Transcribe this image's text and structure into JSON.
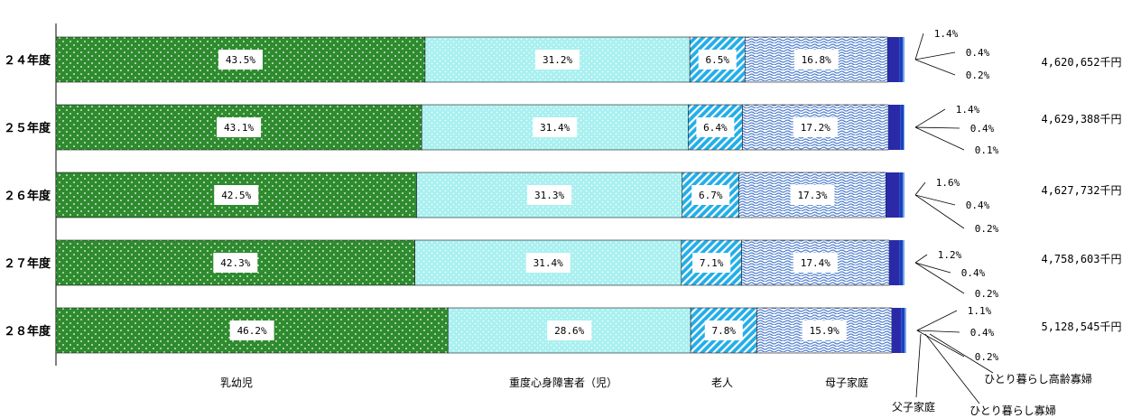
{
  "chart_data": {
    "type": "bar",
    "orientation": "horizontal",
    "stacked": true,
    "categories": [
      "２４年度",
      "２５年度",
      "２６年度",
      "２７年度",
      "２８年度"
    ],
    "series": [
      {
        "name": "乳幼児",
        "values": [
          43.5,
          43.1,
          42.5,
          42.3,
          46.2
        ],
        "labels": [
          "43.5%",
          "43.1%",
          "42.5%",
          "42.3%",
          "46.2%"
        ],
        "color": "#2e8b2e"
      },
      {
        "name": "重度心身障害者（児）",
        "values": [
          31.2,
          31.4,
          31.3,
          31.4,
          28.6
        ],
        "labels": [
          "31.2%",
          "31.4%",
          "31.3%",
          "31.4%",
          "28.6%"
        ],
        "color": "#aaf0f0"
      },
      {
        "name": "老人",
        "values": [
          6.5,
          6.4,
          6.7,
          7.1,
          7.8
        ],
        "labels": [
          "6.5%",
          "6.4%",
          "6.7%",
          "7.1%",
          "7.8%"
        ],
        "color": "#22aee8"
      },
      {
        "name": "母子家庭",
        "values": [
          16.8,
          17.2,
          17.3,
          17.4,
          15.9
        ],
        "labels": [
          "16.8%",
          "17.2%",
          "17.3%",
          "17.4%",
          "15.9%"
        ],
        "color": "#5f8fd8"
      },
      {
        "name": "父子家庭",
        "values": [
          1.4,
          1.4,
          1.6,
          1.2,
          1.1
        ],
        "labels": [
          "1.4%",
          "1.4%",
          "1.6%",
          "1.2%",
          "1.1%"
        ],
        "color": "#2a2aa8"
      },
      {
        "name": "ひとり暮らし寡婦",
        "values": [
          0.4,
          0.4,
          0.4,
          0.4,
          0.4
        ],
        "labels": [
          "0.4%",
          "0.4%",
          "0.4%",
          "0.4%",
          "0.4%"
        ],
        "color": "#1a40c0"
      },
      {
        "name": "ひとり暮らし高齢寡婦",
        "values": [
          0.2,
          0.1,
          0.2,
          0.2,
          0.2
        ],
        "labels": [
          "0.2%",
          "0.1%",
          "0.2%",
          "0.2%",
          "0.2%"
        ],
        "color": "#6f9fe0"
      }
    ],
    "totals": [
      "4,620,652千円",
      "4,629,388千円",
      "4,627,732千円",
      "4,758,603千円",
      "5,128,545千円"
    ],
    "xlim": [
      0,
      100
    ],
    "grid": false,
    "legend": "bottom"
  }
}
